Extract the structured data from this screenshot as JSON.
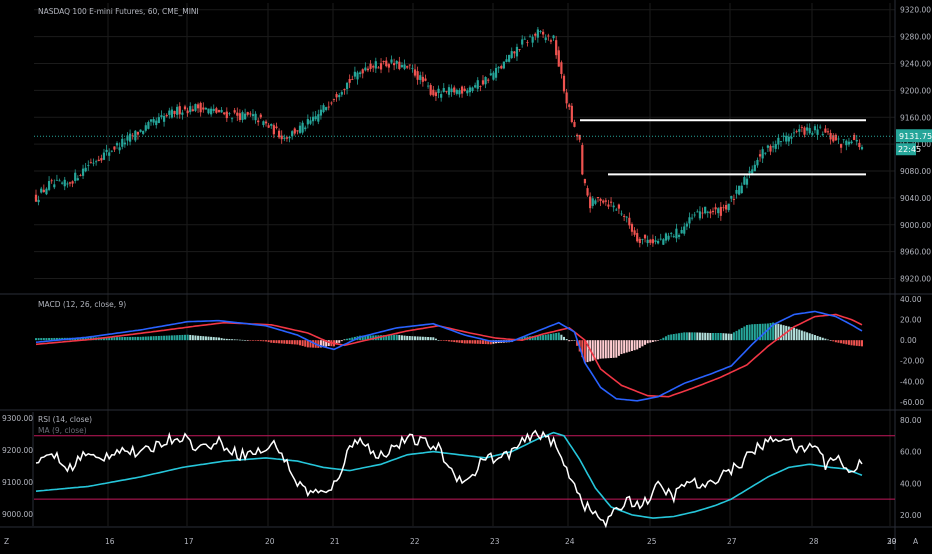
{
  "chart_data": {
    "type": "candlestick",
    "title": "NASDAQ 100 E-mini Futures, 60, CME_MINI",
    "x_tick_labels": [
      "16",
      "17",
      "20",
      "21",
      "22",
      "23",
      "24",
      "25",
      "27",
      "28",
      "29",
      "30"
    ],
    "price": {
      "ylim": [
        8900,
        9330
      ],
      "tick_labels": [
        "9320.00",
        "9280.00",
        "9240.00",
        "9200.00",
        "9160.00",
        "9120.00",
        "9080.00",
        "9040.00",
        "9000.00",
        "8960.00",
        "8920.00"
      ],
      "last_price_label": "9131.75",
      "countdown_label": "22:45",
      "last_price": 9131.75,
      "horizontal_levels": [
        9155.5,
        9075
      ],
      "anchors": [
        [
          0,
          9040
        ],
        [
          5,
          9060
        ],
        [
          12,
          9060
        ],
        [
          20,
          9090
        ],
        [
          28,
          9110
        ],
        [
          36,
          9130
        ],
        [
          44,
          9150
        ],
        [
          54,
          9170
        ],
        [
          62,
          9175
        ],
        [
          72,
          9165
        ],
        [
          84,
          9160
        ],
        [
          95,
          9130
        ],
        [
          106,
          9155
        ],
        [
          116,
          9200
        ],
        [
          126,
          9235
        ],
        [
          136,
          9240
        ],
        [
          144,
          9230
        ],
        [
          152,
          9195
        ],
        [
          162,
          9200
        ],
        [
          170,
          9210
        ],
        [
          178,
          9235
        ],
        [
          186,
          9270
        ],
        [
          192,
          9285
        ],
        [
          198,
          9275
        ],
        [
          202,
          9200
        ],
        [
          206,
          9140
        ],
        [
          208,
          9125
        ],
        [
          209,
          9070
        ],
        [
          212,
          9030
        ],
        [
          216,
          9040
        ],
        [
          224,
          9020
        ],
        [
          230,
          8980
        ],
        [
          238,
          8975
        ],
        [
          246,
          8990
        ],
        [
          254,
          9020
        ],
        [
          262,
          9020
        ],
        [
          268,
          9045
        ],
        [
          276,
          9100
        ],
        [
          284,
          9125
        ],
        [
          292,
          9140
        ],
        [
          300,
          9140
        ],
        [
          308,
          9120
        ],
        [
          312,
          9130
        ],
        [
          316,
          9115
        ]
      ]
    },
    "macd": {
      "label": "MACD (12, 26, close, 9)",
      "ylim": [
        -66,
        43
      ],
      "tick_labels": [
        "40.00",
        "20.00",
        "0.00",
        "-20.00",
        "-40.00",
        "-60.00"
      ],
      "macd_line": [
        [
          0,
          -2
        ],
        [
          20,
          3
        ],
        [
          40,
          10
        ],
        [
          58,
          18
        ],
        [
          70,
          19
        ],
        [
          88,
          14
        ],
        [
          100,
          5
        ],
        [
          108,
          -5
        ],
        [
          114,
          -9
        ],
        [
          124,
          3
        ],
        [
          138,
          12
        ],
        [
          152,
          16
        ],
        [
          164,
          5
        ],
        [
          174,
          -1
        ],
        [
          182,
          -1
        ],
        [
          192,
          9
        ],
        [
          200,
          17
        ],
        [
          206,
          8
        ],
        [
          210,
          -22
        ],
        [
          216,
          -46
        ],
        [
          222,
          -57
        ],
        [
          230,
          -59
        ],
        [
          238,
          -55
        ],
        [
          248,
          -42
        ],
        [
          258,
          -33
        ],
        [
          266,
          -25
        ],
        [
          274,
          -4
        ],
        [
          282,
          15
        ],
        [
          290,
          25
        ],
        [
          298,
          28
        ],
        [
          306,
          23
        ],
        [
          312,
          15
        ],
        [
          316,
          9
        ]
      ],
      "signal_line": [
        [
          0,
          -4
        ],
        [
          22,
          1
        ],
        [
          44,
          8
        ],
        [
          62,
          14
        ],
        [
          72,
          17
        ],
        [
          90,
          15
        ],
        [
          104,
          7
        ],
        [
          112,
          -2
        ],
        [
          118,
          -5
        ],
        [
          128,
          1
        ],
        [
          142,
          9
        ],
        [
          154,
          14
        ],
        [
          166,
          7
        ],
        [
          176,
          2
        ],
        [
          186,
          0
        ],
        [
          194,
          6
        ],
        [
          204,
          12
        ],
        [
          210,
          0
        ],
        [
          216,
          -28
        ],
        [
          224,
          -44
        ],
        [
          234,
          -54
        ],
        [
          242,
          -55
        ],
        [
          252,
          -46
        ],
        [
          262,
          -36
        ],
        [
          272,
          -24
        ],
        [
          280,
          -6
        ],
        [
          290,
          13
        ],
        [
          298,
          23
        ],
        [
          306,
          25
        ],
        [
          312,
          20
        ],
        [
          316,
          15
        ]
      ]
    },
    "rsi": {
      "label": "RSI (14, close)",
      "ma_label": "MA (9, close)",
      "ylim": [
        13,
        85
      ],
      "tick_labels": [
        "80.00",
        "60.00",
        "40.00",
        "20.00"
      ],
      "left_tick_labels": [
        "9300.00",
        "9200.00",
        "9100.00",
        "9000.00"
      ],
      "upper_band": 70,
      "lower_band": 30,
      "rsi_line": [
        [
          0,
          50
        ],
        [
          6,
          60
        ],
        [
          12,
          48
        ],
        [
          18,
          58
        ],
        [
          24,
          55
        ],
        [
          32,
          62
        ],
        [
          40,
          58
        ],
        [
          48,
          66
        ],
        [
          56,
          70
        ],
        [
          62,
          62
        ],
        [
          70,
          66
        ],
        [
          78,
          58
        ],
        [
          86,
          60
        ],
        [
          92,
          65
        ],
        [
          96,
          52
        ],
        [
          100,
          40
        ],
        [
          104,
          35
        ],
        [
          108,
          34
        ],
        [
          112,
          33
        ],
        [
          116,
          46
        ],
        [
          120,
          62
        ],
        [
          124,
          70
        ],
        [
          130,
          56
        ],
        [
          136,
          62
        ],
        [
          142,
          68
        ],
        [
          148,
          66
        ],
        [
          154,
          62
        ],
        [
          160,
          45
        ],
        [
          166,
          42
        ],
        [
          172,
          58
        ],
        [
          176,
          54
        ],
        [
          182,
          60
        ],
        [
          188,
          68
        ],
        [
          194,
          72
        ],
        [
          198,
          65
        ],
        [
          202,
          52
        ],
        [
          206,
          40
        ],
        [
          210,
          26
        ],
        [
          214,
          20
        ],
        [
          218,
          15
        ],
        [
          222,
          22
        ],
        [
          226,
          30
        ],
        [
          232,
          26
        ],
        [
          238,
          38
        ],
        [
          244,
          32
        ],
        [
          250,
          42
        ],
        [
          256,
          36
        ],
        [
          262,
          46
        ],
        [
          268,
          50
        ],
        [
          274,
          60
        ],
        [
          280,
          66
        ],
        [
          286,
          70
        ],
        [
          292,
          60
        ],
        [
          298,
          65
        ],
        [
          302,
          52
        ],
        [
          306,
          58
        ],
        [
          310,
          48
        ],
        [
          314,
          49
        ],
        [
          316,
          55
        ]
      ],
      "ma_line": [
        [
          0,
          35
        ],
        [
          20,
          38
        ],
        [
          40,
          44
        ],
        [
          56,
          50
        ],
        [
          72,
          54
        ],
        [
          88,
          56
        ],
        [
          100,
          54
        ],
        [
          110,
          50
        ],
        [
          120,
          48
        ],
        [
          132,
          52
        ],
        [
          142,
          58
        ],
        [
          152,
          60
        ],
        [
          162,
          58
        ],
        [
          172,
          56
        ],
        [
          182,
          60
        ],
        [
          192,
          68
        ],
        [
          198,
          72
        ],
        [
          202,
          70
        ],
        [
          208,
          55
        ],
        [
          214,
          37
        ],
        [
          220,
          25
        ],
        [
          228,
          20
        ],
        [
          236,
          18
        ],
        [
          244,
          19
        ],
        [
          252,
          22
        ],
        [
          260,
          26
        ],
        [
          266,
          30
        ],
        [
          272,
          36
        ],
        [
          280,
          44
        ],
        [
          288,
          50
        ],
        [
          296,
          52
        ],
        [
          304,
          50
        ],
        [
          310,
          49
        ],
        [
          316,
          45
        ]
      ]
    },
    "time_axis_corner_labels": [
      "Z",
      "A"
    ]
  },
  "colors": {
    "background": "#000000",
    "grid": "#1b1b1b",
    "axis_text": "#b2b5be",
    "bull": "#26a69a",
    "bear": "#ef5350",
    "level_line": "#ffffff",
    "last_price_line": "#26a69a",
    "macd_line": "#2962ff",
    "signal_line": "#f23645",
    "rsi_line": "#ffffff",
    "rsi_ma": "#26c6da",
    "rsi_band": "#c2185b"
  }
}
